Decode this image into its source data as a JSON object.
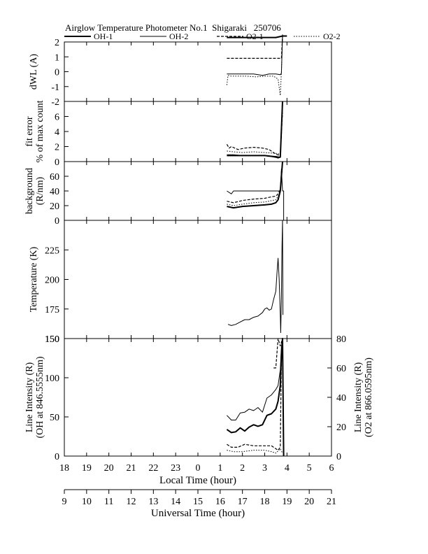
{
  "chart_data": {
    "type": "line",
    "title": "Airglow Temperature Photometer No.1  Shigaraki   250706",
    "legend": {
      "placement": "top",
      "entries": [
        {
          "name": "OH-1",
          "style": "solid-thick"
        },
        {
          "name": "OH-2",
          "style": "solid-thin"
        },
        {
          "name": "O2-1",
          "style": "dashed"
        },
        {
          "name": "O2-2",
          "style": "dotted"
        }
      ]
    },
    "x_axis_local": {
      "label": "Local Time (hour)",
      "range": [
        18,
        30
      ],
      "tick_values": [
        18,
        19,
        20,
        21,
        22,
        23,
        24,
        25,
        26,
        27,
        28,
        29,
        30
      ],
      "tick_labels": [
        "18",
        "19",
        "20",
        "21",
        "22",
        "23",
        "0",
        "1",
        "2",
        "3",
        "4",
        "5",
        "6"
      ]
    },
    "x_axis_universal": {
      "label": "Universal Time (hour)",
      "range": [
        9,
        21
      ],
      "tick_labels": [
        "9",
        "10",
        "11",
        "12",
        "13",
        "14",
        "15",
        "16",
        "17",
        "18",
        "19",
        "20",
        "21"
      ]
    },
    "panels": [
      {
        "id": "dwl",
        "ylabel": [
          "dWL (A)"
        ],
        "ylim": [
          -2,
          2
        ],
        "yticks": [
          -2,
          -1,
          0,
          1,
          2
        ],
        "ytick_labels": [
          "-2",
          "-1",
          "0",
          "1",
          "2"
        ],
        "series": [
          {
            "name": "OH-1",
            "style": "solid-thick",
            "x": [
              25.3,
              25.6,
              26.0,
              26.5,
              27.0,
              27.5,
              27.8,
              28.0
            ],
            "y": [
              2.3,
              2.3,
              2.3,
              2.3,
              2.3,
              2.3,
              2.4,
              2.4
            ]
          },
          {
            "name": "OH-2",
            "style": "solid-thin",
            "x": [
              25.3,
              25.6,
              26.0,
              26.5,
              26.9,
              27.2,
              27.5,
              27.7,
              27.75,
              27.8
            ],
            "y": [
              -0.15,
              -0.15,
              -0.15,
              -0.15,
              -0.25,
              -0.15,
              -0.15,
              -0.2,
              -0.1,
              2.4
            ]
          },
          {
            "name": "O2-1",
            "style": "dashed",
            "x": [
              25.3,
              25.6,
              26.0,
              26.5,
              27.0,
              27.5,
              27.7,
              27.75,
              27.8
            ],
            "y": [
              0.9,
              0.9,
              0.9,
              0.9,
              0.9,
              0.9,
              0.9,
              0.9,
              2.5
            ]
          },
          {
            "name": "O2-2",
            "style": "dotted",
            "x": [
              25.3,
              25.35,
              25.5,
              25.8,
              26.2,
              26.6,
              27.0,
              27.4,
              27.6,
              27.7,
              27.75,
              27.8
            ],
            "y": [
              -0.9,
              -0.25,
              -0.3,
              -0.3,
              -0.3,
              -0.35,
              -0.3,
              -0.3,
              -0.5,
              -1.6,
              0.0,
              2.4
            ]
          }
        ]
      },
      {
        "id": "fit",
        "ylabel": [
          "fit error",
          "% of max count"
        ],
        "ylim": [
          0,
          8
        ],
        "yticks": [
          0,
          2,
          4,
          6
        ],
        "ytick_labels": [
          "0",
          "2",
          "4",
          "6"
        ],
        "series": [
          {
            "name": "OH-1",
            "style": "solid-thick",
            "x": [
              25.3,
              25.6,
              26.0,
              26.5,
              27.0,
              27.3,
              27.5,
              27.6,
              27.7,
              27.8
            ],
            "y": [
              0.8,
              0.8,
              0.8,
              0.8,
              0.8,
              0.7,
              0.6,
              0.5,
              0.6,
              8.0
            ]
          },
          {
            "name": "OH-2",
            "style": "solid-thin",
            "x": [
              25.3,
              25.6,
              26.0,
              26.5,
              27.0,
              27.5,
              27.7,
              27.8
            ],
            "y": [
              0.9,
              0.9,
              0.8,
              0.8,
              0.8,
              0.7,
              0.6,
              7.5
            ]
          },
          {
            "name": "O2-1",
            "style": "dashed",
            "x": [
              25.3,
              25.4,
              25.5,
              25.8,
              26.1,
              26.5,
              26.9,
              27.2,
              27.5,
              27.7,
              27.8
            ],
            "y": [
              2.3,
              1.8,
              2.0,
              1.6,
              1.8,
              1.9,
              1.8,
              1.6,
              1.0,
              0.8,
              6.5
            ]
          },
          {
            "name": "O2-2",
            "style": "dotted",
            "x": [
              25.3,
              25.6,
              26.0,
              26.5,
              27.0,
              27.5,
              27.7,
              27.75,
              27.8
            ],
            "y": [
              1.4,
              1.3,
              1.2,
              1.3,
              1.2,
              1.1,
              1.0,
              4.5,
              7.0
            ]
          }
        ]
      },
      {
        "id": "background",
        "ylabel": [
          "background",
          "(R/nm)"
        ],
        "ylim": [
          0,
          80
        ],
        "yticks": [
          0,
          20,
          40,
          60
        ],
        "ytick_labels": [
          "0",
          "20",
          "40",
          "60"
        ],
        "series": [
          {
            "name": "OH-1",
            "style": "solid-thick",
            "x": [
              25.3,
              25.6,
              26.0,
              26.5,
              27.0,
              27.3,
              27.5,
              27.6,
              27.7,
              27.75,
              27.8
            ],
            "y": [
              19,
              17,
              19,
              20,
              21,
              22,
              24,
              28,
              40,
              60,
              80
            ]
          },
          {
            "name": "OH-2",
            "style": "solid-thin",
            "x": [
              25.3,
              25.5,
              25.6,
              25.8,
              26.0,
              26.5,
              27.0,
              27.5,
              27.7,
              27.75,
              27.8,
              27.85,
              27.85
            ],
            "y": [
              40,
              36,
              40,
              40,
              40,
              40,
              40,
              40,
              40,
              70,
              40,
              40,
              0
            ]
          },
          {
            "name": "O2-1",
            "style": "dashed",
            "x": [
              25.3,
              25.6,
              26.0,
              26.5,
              27.0,
              27.3,
              27.5,
              27.6,
              27.7,
              27.75,
              27.8
            ],
            "y": [
              26,
              24,
              27,
              29,
              30,
              32,
              33,
              36,
              42,
              60,
              78
            ]
          },
          {
            "name": "O2-2",
            "style": "dotted",
            "x": [
              25.3,
              25.6,
              26.0,
              26.5,
              27.0,
              27.5,
              27.7,
              27.8
            ],
            "y": [
              22,
              20,
              22,
              24,
              25,
              28,
              38,
              75
            ]
          }
        ]
      },
      {
        "id": "temperature",
        "ylabel": [
          "Temperature (K)"
        ],
        "ylim": [
          150,
          250
        ],
        "yticks": [
          150,
          175,
          200,
          225
        ],
        "ytick_labels": [
          "150",
          "175",
          "200",
          "225"
        ],
        "series": [
          {
            "name": "OH-1",
            "style": "solid-thin",
            "x": [
              25.35,
              25.5,
              25.7,
              25.9,
              26.1,
              26.3,
              26.5,
              26.7,
              26.9,
              27.0,
              27.1,
              27.2,
              27.3,
              27.4,
              27.5,
              27.55,
              27.6,
              27.65,
              27.7,
              27.72,
              27.75,
              27.78,
              27.8,
              27.82
            ],
            "y": [
              162,
              161,
              162,
              164,
              166,
              166,
              168,
              169,
              172,
              175,
              176,
              174,
              175,
              183,
              190,
              205,
              218,
              200,
              170,
              155,
              185,
              230,
              250,
              170
            ]
          }
        ]
      },
      {
        "id": "intensity",
        "ylabel": [
          "Line Intensity (R)",
          "(OH at 846.5555nm)"
        ],
        "ylim": [
          0,
          150
        ],
        "yticks": [
          0,
          50,
          100,
          150
        ],
        "ytick_labels": [
          "0",
          "50",
          "100",
          "150"
        ],
        "ylabel_right": [
          "Line Intensity (R)",
          "(O2 at 866.0595nm)"
        ],
        "ylim_right": [
          0,
          80
        ],
        "yticks_right": [
          0,
          20,
          40,
          60,
          80
        ],
        "ytick_labels_right": [
          "0",
          "20",
          "40",
          "60",
          "80"
        ],
        "series": [
          {
            "name": "OH-1",
            "style": "solid-thick",
            "axis": "left",
            "x": [
              25.3,
              25.5,
              25.7,
              25.9,
              26.1,
              26.3,
              26.5,
              26.7,
              26.9,
              27.1,
              27.3,
              27.5,
              27.6,
              27.7,
              27.75,
              27.8,
              27.85
            ],
            "y": [
              34,
              30,
              31,
              36,
              32,
              37,
              40,
              38,
              40,
              52,
              54,
              60,
              70,
              90,
              130,
              150,
              0
            ]
          },
          {
            "name": "OH-2",
            "style": "solid-thin",
            "axis": "left",
            "x": [
              25.3,
              25.5,
              25.7,
              25.9,
              26.1,
              26.3,
              26.5,
              26.7,
              26.9,
              27.1,
              27.3,
              27.5,
              27.6,
              27.7,
              27.75,
              27.8
            ],
            "y": [
              52,
              46,
              46,
              55,
              56,
              60,
              58,
              62,
              56,
              74,
              78,
              85,
              90,
              110,
              140,
              150
            ]
          },
          {
            "name": "OH-1",
            "style": "solid-thin",
            "axis": "left",
            "x": [
              25.3,
              25.6,
              26.0,
              26.5,
              27.0,
              27.4,
              27.5,
              27.6,
              27.85
            ],
            "y": [
              150,
              150,
              150,
              150,
              150,
              150,
              150,
              150,
              150
            ]
          },
          {
            "name": "O2-1",
            "style": "dashed",
            "axis": "right",
            "x": [
              25.3,
              25.5,
              25.8,
              26.1,
              26.5,
              27.0,
              27.3,
              27.5,
              27.6,
              27.7,
              27.75,
              27.8
            ],
            "y": [
              8,
              6,
              6,
              8,
              7,
              7,
              7,
              5,
              4,
              6,
              70,
              80
            ]
          },
          {
            "name": "O2-2",
            "style": "dotted",
            "axis": "right",
            "x": [
              25.3,
              25.6,
              26.0,
              26.5,
              27.0,
              27.3,
              27.5,
              27.7,
              27.8
            ],
            "y": [
              4,
              3,
              3,
              4,
              4,
              3,
              2,
              5,
              2
            ]
          },
          {
            "name": "O2-1",
            "style": "dashed",
            "axis": "right",
            "x": [
              27.4,
              27.5,
              27.6,
              27.7,
              27.8
            ],
            "y": [
              60,
              60,
              80,
              75,
              80
            ]
          }
        ]
      }
    ]
  }
}
